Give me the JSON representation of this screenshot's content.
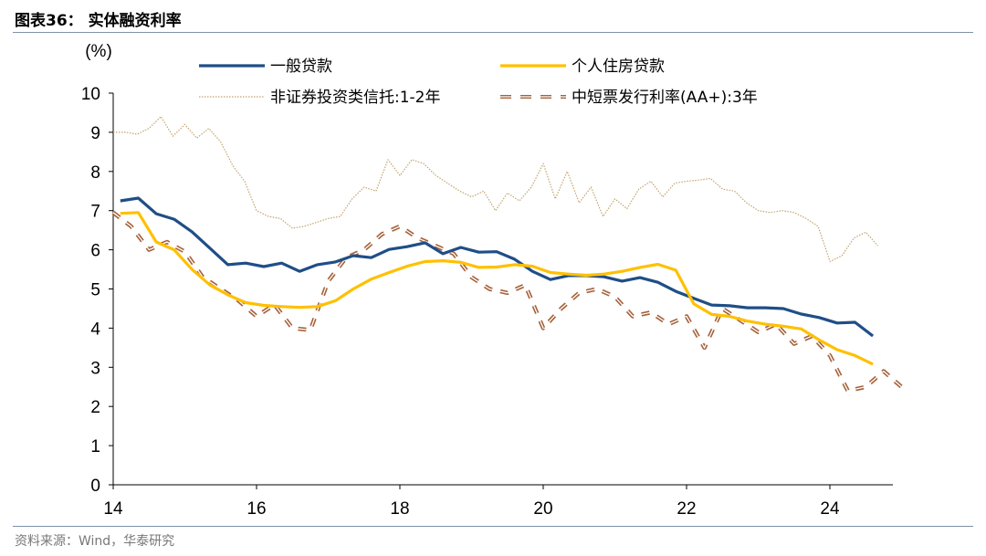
{
  "title": "图表36：  实体融资利率",
  "source": "资料来源：Wind，华泰研究",
  "chart_data": {
    "type": "line",
    "ylabel": "(%)",
    "ylim": [
      0,
      10
    ],
    "xlim": [
      14,
      24.85
    ],
    "yticks": [
      "0",
      "1",
      "2",
      "3",
      "4",
      "5",
      "6",
      "7",
      "8",
      "9",
      "10"
    ],
    "xticks": [
      "14",
      "16",
      "18",
      "20",
      "22",
      "24"
    ],
    "legend_position": "top",
    "series": [
      {
        "name": "一般贷款",
        "color": "#1f4e87",
        "style": "solid",
        "x_start": 14.1,
        "x_step": 0.25,
        "values": [
          7.25,
          7.32,
          6.92,
          6.78,
          6.46,
          6.04,
          5.62,
          5.66,
          5.57,
          5.66,
          5.45,
          5.62,
          5.69,
          5.85,
          5.8,
          6.01,
          6.08,
          6.18,
          5.9,
          6.06,
          5.94,
          5.95,
          5.76,
          5.45,
          5.24,
          5.34,
          5.34,
          5.31,
          5.2,
          5.29,
          5.17,
          4.94,
          4.76,
          4.59,
          4.57,
          4.52,
          4.52,
          4.5,
          4.36,
          4.27,
          4.13,
          4.15,
          3.8
        ]
      },
      {
        "name": "个人住房贷款",
        "color": "#ffc000",
        "style": "solid",
        "x_start": 14.1,
        "x_step": 0.25,
        "values": [
          6.93,
          6.95,
          6.2,
          6.0,
          5.5,
          5.1,
          4.85,
          4.65,
          4.58,
          4.55,
          4.53,
          4.55,
          4.7,
          5.0,
          5.25,
          5.42,
          5.58,
          5.7,
          5.72,
          5.68,
          5.55,
          5.56,
          5.62,
          5.58,
          5.42,
          5.38,
          5.35,
          5.38,
          5.45,
          5.55,
          5.63,
          5.48,
          4.62,
          4.35,
          4.3,
          4.18,
          4.1,
          4.05,
          3.98,
          3.7,
          3.45,
          3.3,
          3.08
        ]
      },
      {
        "name": "非证券投资类信托:1-2年",
        "color": "#c4a46e",
        "style": "dotted",
        "x_start": 14.0,
        "x_step": 0.1667,
        "values": [
          9.0,
          9.0,
          8.95,
          9.1,
          9.4,
          8.9,
          9.2,
          8.85,
          9.1,
          8.75,
          8.15,
          7.75,
          7.0,
          6.85,
          6.8,
          6.55,
          6.6,
          6.7,
          6.8,
          6.85,
          7.3,
          7.6,
          7.5,
          8.3,
          7.9,
          8.3,
          8.2,
          7.9,
          7.7,
          7.5,
          7.35,
          7.5,
          7.0,
          7.45,
          7.25,
          7.6,
          8.2,
          7.3,
          8.0,
          7.2,
          7.6,
          6.85,
          7.3,
          7.05,
          7.55,
          7.75,
          7.35,
          7.7,
          7.75,
          7.78,
          7.82,
          7.55,
          7.5,
          7.2,
          7.0,
          6.95,
          7.0,
          6.95,
          6.8,
          6.6,
          5.7,
          5.85,
          6.3,
          6.45,
          6.1
        ]
      },
      {
        "name": "中短票发行利率(AA+):3年",
        "color": "#a5613a",
        "style": "dashed",
        "x_start": 14.0,
        "x_step": 0.25,
        "values": [
          6.95,
          6.6,
          6.0,
          6.2,
          5.95,
          5.3,
          5.0,
          4.7,
          4.3,
          4.6,
          4.0,
          3.95,
          5.2,
          5.8,
          6.0,
          6.4,
          6.6,
          6.3,
          6.1,
          5.9,
          5.3,
          5.0,
          4.9,
          5.1,
          4.0,
          4.5,
          4.9,
          5.0,
          4.8,
          4.3,
          4.4,
          4.1,
          4.3,
          3.5,
          4.5,
          4.2,
          3.9,
          4.1,
          3.6,
          3.8,
          3.3,
          2.4,
          2.5,
          2.9,
          2.5
        ]
      }
    ]
  }
}
